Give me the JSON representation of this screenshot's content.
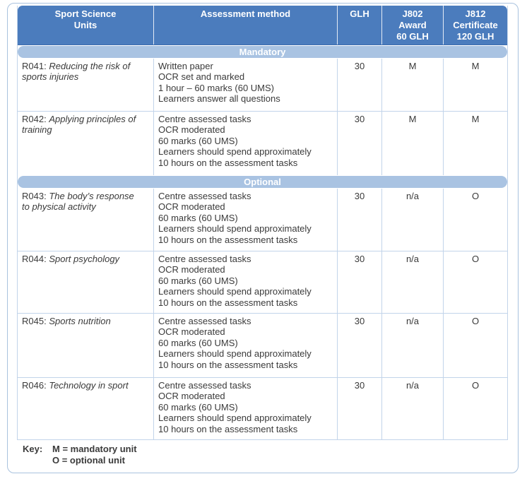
{
  "table": {
    "headers": [
      "Sport Science\nUnits",
      "Assessment method",
      "GLH",
      "J802\nAward\n60 GLH",
      "J812\nCertificate\n120 GLH"
    ],
    "sections": {
      "mandatory": "Mandatory",
      "optional": "Optional"
    },
    "rows": [
      {
        "code": "R041:",
        "title": "Reducing the risk of sports injuries",
        "assessment": "Written paper\nOCR set and marked\n1 hour – 60 marks (60 UMS)\nLearners answer all questions",
        "glh": "30",
        "j802": "M",
        "j812": "M"
      },
      {
        "code": "R042:",
        "title": "Applying principles of training",
        "assessment": "Centre assessed tasks\nOCR moderated\n60 marks (60 UMS)\nLearners should spend approximately\n10 hours on the assessment tasks",
        "glh": "30",
        "j802": "M",
        "j812": "M"
      },
      {
        "code": "R043:",
        "title": "The body’s response to physical activity",
        "assessment": "Centre assessed tasks\nOCR moderated\n60 marks (60 UMS)\nLearners should spend approximately\n10 hours on the assessment tasks",
        "glh": "30",
        "j802": "n/a",
        "j812": "O"
      },
      {
        "code": "R044:",
        "title": "Sport psychology",
        "assessment": "Centre assessed tasks\nOCR moderated\n60 marks (60 UMS)\nLearners should spend approximately\n10 hours on the assessment tasks",
        "glh": "30",
        "j802": "n/a",
        "j812": "O"
      },
      {
        "code": "R045:",
        "title": "Sports nutrition",
        "assessment": "Centre assessed tasks\nOCR moderated\n60 marks (60 UMS)\nLearners should spend approximately\n10 hours on the assessment tasks",
        "glh": "30",
        "j802": "n/a",
        "j812": "O"
      },
      {
        "code": "R046:",
        "title": "Technology in sport",
        "assessment": "Centre assessed tasks\nOCR moderated\n60 marks (60 UMS)\nLearners should spend approximately\n10 hours on the assessment tasks",
        "glh": "30",
        "j802": "n/a",
        "j812": "O"
      }
    ],
    "key": {
      "label": "Key:",
      "lines": "M = mandatory unit\nO = optional unit"
    }
  },
  "colors": {
    "header_bg": "#4b7cbd",
    "header_edge": "#3c6cae",
    "band_bg": "#a9c3e2",
    "border": "#c2d4ea",
    "outer_border": "#a9c2de",
    "text": "#3a3a3a"
  }
}
